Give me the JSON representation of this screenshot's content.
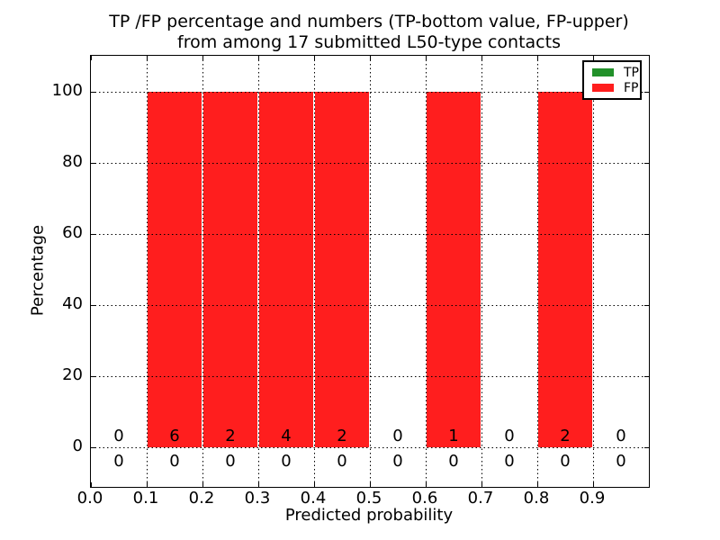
{
  "chart_data": {
    "type": "bar",
    "title_line1": "TP /FP percentage and numbers (TP-bottom value, FP-upper)",
    "title_line2": "from among 17 submitted L50-type contacts",
    "xlabel": "Predicted probability",
    "ylabel": "Percentage",
    "xlim": [
      0.0,
      1.0
    ],
    "ylim": [
      -11,
      110
    ],
    "xticks": [
      0.0,
      0.1,
      0.2,
      0.3,
      0.4,
      0.5,
      0.6,
      0.7,
      0.8,
      0.9
    ],
    "xtick_labels": [
      "0.0",
      "0.1",
      "0.2",
      "0.3",
      "0.4",
      "0.5",
      "0.6",
      "0.7",
      "0.8",
      "0.9"
    ],
    "yticks": [
      0,
      20,
      40,
      60,
      80,
      100
    ],
    "ytick_labels": [
      "0",
      "20",
      "40",
      "60",
      "80",
      "100"
    ],
    "grid": "dotted",
    "grid_above_bars": true,
    "legend_position": "upper right",
    "bin_edges": [
      0.0,
      0.1,
      0.2,
      0.3,
      0.4,
      0.5,
      0.6,
      0.7,
      0.8,
      0.9,
      1.0
    ],
    "series": [
      {
        "name": "TP",
        "color": "#22912a",
        "percentages": [
          0,
          0,
          0,
          0,
          0,
          0,
          0,
          0,
          0,
          0
        ],
        "counts": [
          0,
          0,
          0,
          0,
          0,
          0,
          0,
          0,
          0,
          0
        ],
        "count_label_row": "bottom"
      },
      {
        "name": "FP",
        "color": "#ff1e1e",
        "percentages": [
          0,
          100,
          100,
          100,
          100,
          0,
          100,
          0,
          100,
          0
        ],
        "counts": [
          0,
          6,
          2,
          4,
          2,
          0,
          1,
          0,
          2,
          0
        ],
        "count_label_row": "top"
      }
    ]
  }
}
